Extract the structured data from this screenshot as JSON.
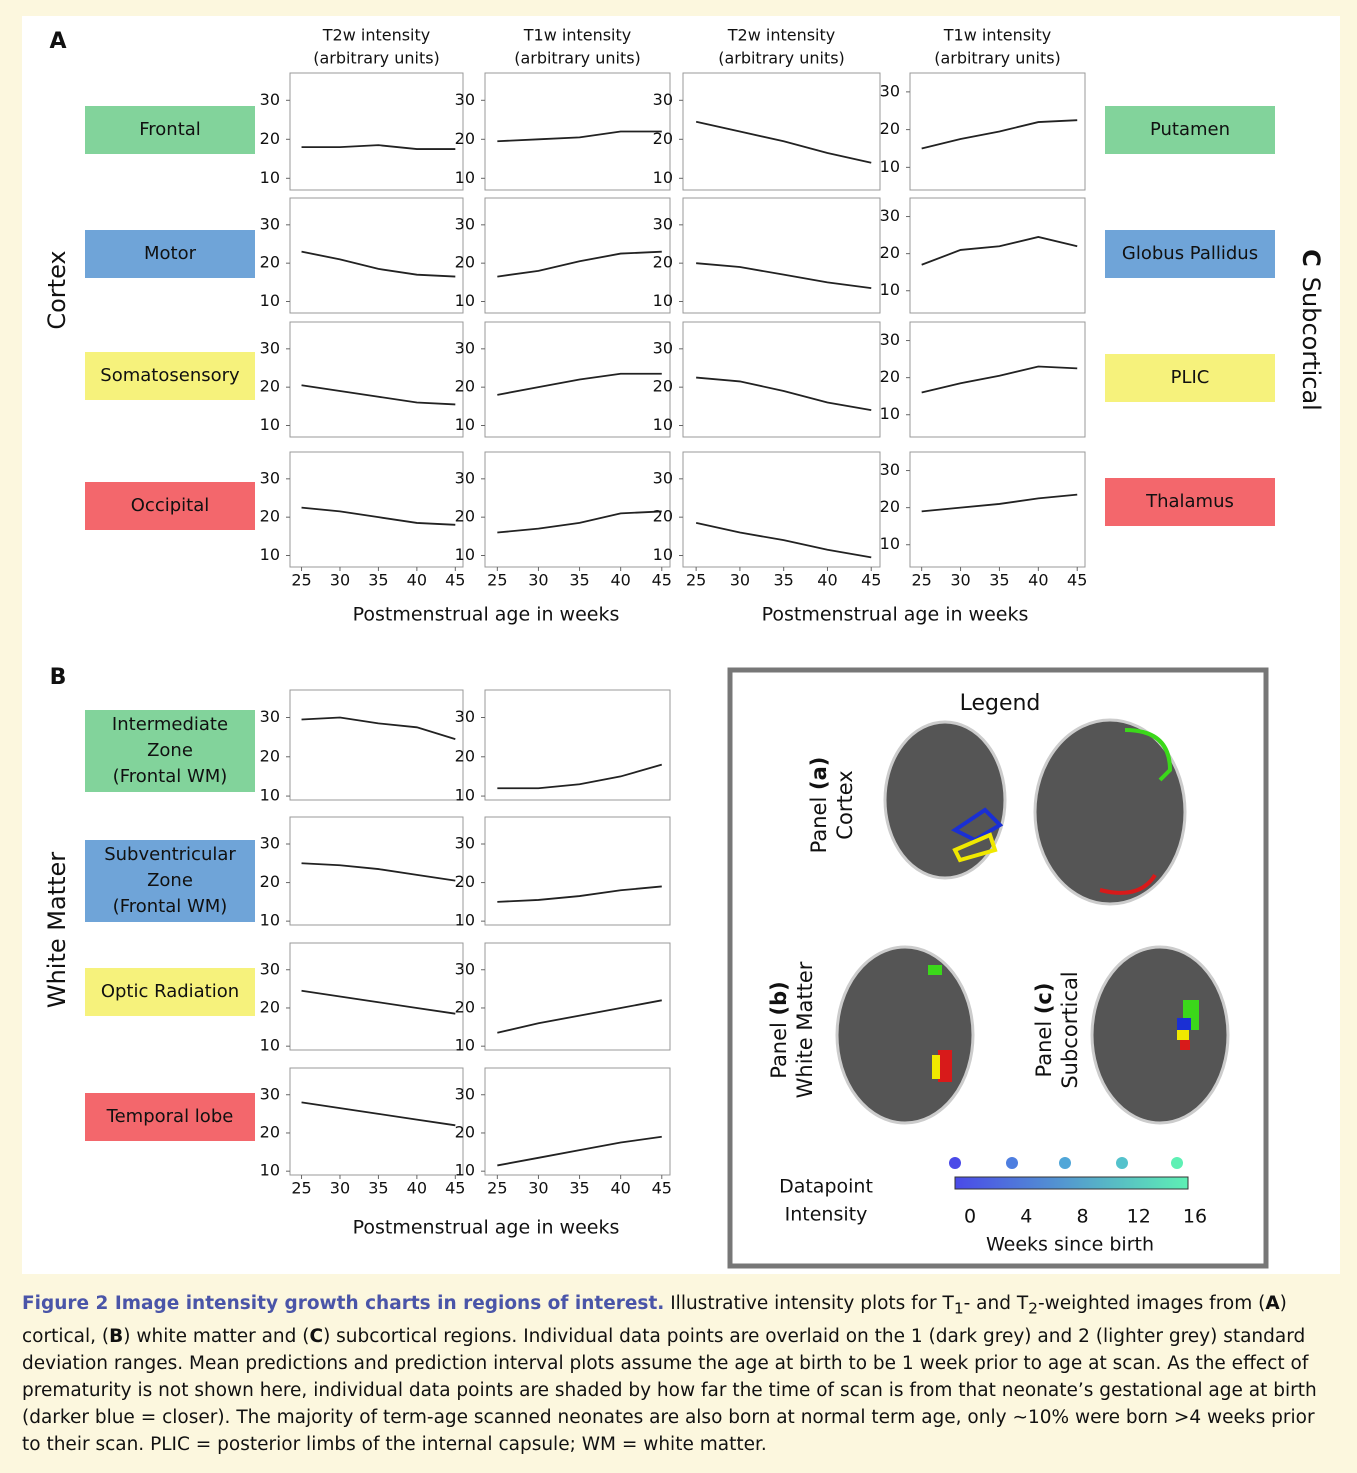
{
  "figure": {
    "panel_a": "A",
    "panel_b": "B",
    "headers": [
      [
        "T2w intensity",
        "(arbitrary units)"
      ],
      [
        "T1w intensity",
        "(arbitrary units)"
      ],
      [
        "T2w intensity",
        "(arbitrary units)"
      ],
      [
        "T1w intensity",
        "(arbitrary units)"
      ]
    ],
    "cortex_label": "Cortex",
    "subcortical_label": [
      "C",
      "Subcortical"
    ],
    "white_matter_label": "White Matter",
    "x_axis_label": "Postmenstrual age in weeks",
    "cortex_regions": [
      {
        "label": [
          "Frontal"
        ],
        "color": "#82d39b"
      },
      {
        "label": [
          "Motor"
        ],
        "color": "#6fa4d8"
      },
      {
        "label": [
          "Somatosensory"
        ],
        "color": "#f6f27c"
      },
      {
        "label": [
          "Occipital"
        ],
        "color": "#f3676c"
      }
    ],
    "subcortical_regions": [
      {
        "label": [
          "Putamen"
        ],
        "color": "#82d39b"
      },
      {
        "label": [
          "Globus Pallidus"
        ],
        "color": "#6fa4d8"
      },
      {
        "label": [
          "PLIC"
        ],
        "color": "#f6f27c"
      },
      {
        "label": [
          "Thalamus"
        ],
        "color": "#f3676c"
      }
    ],
    "wm_regions": [
      {
        "label": [
          "Intermediate",
          "Zone",
          "(Frontal WM)"
        ],
        "color": "#82d39b"
      },
      {
        "label": [
          "Subventricular",
          "Zone",
          "(Frontal WM)"
        ],
        "color": "#6fa4d8"
      },
      {
        "label": [
          "Optic Radiation"
        ],
        "color": "#f6f27c"
      },
      {
        "label": [
          "Temporal lobe"
        ],
        "color": "#f3676c"
      }
    ],
    "legend": {
      "title": "Legend",
      "panels": [
        [
          "Panel ",
          "(a)",
          "Cortex"
        ],
        [
          "Panel ",
          "(b)",
          "White Matter"
        ],
        [
          "Panel ",
          "(c)",
          "Subcortical"
        ]
      ],
      "colorbar_label": [
        "Datapoint",
        "Intensity"
      ],
      "colorbar_ticks": [
        0,
        4,
        8,
        12,
        16
      ],
      "colorbar_title": "Weeks since birth"
    },
    "caption": {
      "title": "Figure 2  Image intensity growth charts in regions of interest.",
      "parts": [
        "Illustrative intensity plots for T",
        "1",
        "- and T",
        "2",
        "-weighted images from (",
        "A",
        ") cortical, (",
        "B",
        ") white matter and (",
        "C",
        ") subcortical regions. Individual data points are overlaid on the 1 (dark grey) and 2 (lighter grey) standard deviation ranges. Mean predictions and prediction interval plots assume the age at birth to be 1 week prior to age at scan. As the effect of prematurity is not shown here, individual data points are shaded by how far the time of scan is from that neonate’s gestational age at birth (darker blue = closer). The majority of term-age scanned neonates are also born at normal term age, only ∼10% were born >4 weeks prior to their scan. PLIC = posterior limbs of the internal capsule; WM = white matter."
      ]
    }
  },
  "chart_data": [
    {
      "type": "line",
      "x": [
        25,
        30,
        35,
        40,
        45
      ],
      "values": [
        18,
        18,
        18.5,
        17.5,
        17.5
      ],
      "color": "#222",
      "xlim": [
        23.5,
        46
      ],
      "ylim": [
        7,
        37
      ],
      "yticks": [
        10,
        20,
        30
      ]
    },
    {
      "type": "line",
      "x": [
        25,
        30,
        35,
        40,
        45
      ],
      "values": [
        19.5,
        20,
        20.5,
        22,
        22
      ],
      "color": "#222",
      "xlim": [
        23.5,
        46
      ],
      "ylim": [
        7,
        37
      ],
      "yticks": [
        10,
        20,
        30
      ]
    },
    {
      "type": "line",
      "x": [
        25,
        30,
        35,
        40,
        45
      ],
      "values": [
        24.5,
        22,
        19.5,
        16.5,
        14
      ],
      "color": "#222",
      "xlim": [
        23.5,
        46
      ],
      "ylim": [
        7,
        37
      ],
      "yticks": [
        10,
        20,
        30
      ]
    },
    {
      "type": "line",
      "x": [
        25,
        30,
        35,
        40,
        45
      ],
      "values": [
        15,
        17.5,
        19.5,
        22,
        22.5
      ],
      "color": "#222",
      "xlim": [
        23.5,
        46
      ],
      "ylim": [
        4,
        35
      ],
      "yticks": [
        10,
        20,
        30
      ]
    },
    {
      "type": "line",
      "x": [
        25,
        30,
        35,
        40,
        45
      ],
      "values": [
        23,
        21,
        18.5,
        17,
        16.5
      ],
      "color": "#222",
      "xlim": [
        23.5,
        46
      ],
      "ylim": [
        7,
        37
      ],
      "yticks": [
        10,
        20,
        30
      ]
    },
    {
      "type": "line",
      "x": [
        25,
        30,
        35,
        40,
        45
      ],
      "values": [
        16.5,
        18,
        20.5,
        22.5,
        23
      ],
      "color": "#222",
      "xlim": [
        23.5,
        46
      ],
      "ylim": [
        7,
        37
      ],
      "yticks": [
        10,
        20,
        30
      ]
    },
    {
      "type": "line",
      "x": [
        25,
        30,
        35,
        40,
        45
      ],
      "values": [
        20,
        19,
        17,
        15,
        13.5
      ],
      "color": "#222",
      "xlim": [
        23.5,
        46
      ],
      "ylim": [
        7,
        37
      ],
      "yticks": [
        10,
        20,
        30
      ]
    },
    {
      "type": "line",
      "x": [
        25,
        30,
        35,
        40,
        45
      ],
      "values": [
        17,
        21,
        22,
        24.5,
        22
      ],
      "color": "#222",
      "xlim": [
        23.5,
        46
      ],
      "ylim": [
        4,
        35
      ],
      "yticks": [
        10,
        20,
        30
      ]
    },
    {
      "type": "line",
      "x": [
        25,
        30,
        35,
        40,
        45
      ],
      "values": [
        20.5,
        19,
        17.5,
        16,
        15.5
      ],
      "color": "#222",
      "xlim": [
        23.5,
        46
      ],
      "ylim": [
        7,
        37
      ],
      "yticks": [
        10,
        20,
        30
      ]
    },
    {
      "type": "line",
      "x": [
        25,
        30,
        35,
        40,
        45
      ],
      "values": [
        18,
        20,
        22,
        23.5,
        23.5
      ],
      "color": "#222",
      "xlim": [
        23.5,
        46
      ],
      "ylim": [
        7,
        37
      ],
      "yticks": [
        10,
        20,
        30
      ]
    },
    {
      "type": "line",
      "x": [
        25,
        30,
        35,
        40,
        45
      ],
      "values": [
        22.5,
        21.5,
        19,
        16,
        14
      ],
      "color": "#222",
      "xlim": [
        23.5,
        46
      ],
      "ylim": [
        7,
        37
      ],
      "yticks": [
        10,
        20,
        30
      ]
    },
    {
      "type": "line",
      "x": [
        25,
        30,
        35,
        40,
        45
      ],
      "values": [
        16,
        18.5,
        20.5,
        23,
        22.5
      ],
      "color": "#222",
      "xlim": [
        23.5,
        46
      ],
      "ylim": [
        4,
        35
      ],
      "yticks": [
        10,
        20,
        30
      ]
    },
    {
      "type": "line",
      "x": [
        25,
        30,
        35,
        40,
        45
      ],
      "values": [
        22.5,
        21.5,
        20,
        18.5,
        18
      ],
      "color": "#222",
      "xlim": [
        23.5,
        46
      ],
      "ylim": [
        7,
        37
      ],
      "yticks": [
        10,
        20,
        30
      ],
      "xticks": [
        25,
        30,
        35,
        40,
        45
      ]
    },
    {
      "type": "line",
      "x": [
        25,
        30,
        35,
        40,
        45
      ],
      "values": [
        16,
        17,
        18.5,
        21,
        21.5
      ],
      "color": "#222",
      "xlim": [
        23.5,
        46
      ],
      "ylim": [
        7,
        37
      ],
      "yticks": [
        10,
        20,
        30
      ],
      "xticks": [
        25,
        30,
        35,
        40,
        45
      ]
    },
    {
      "type": "line",
      "x": [
        25,
        30,
        35,
        40,
        45
      ],
      "values": [
        18.5,
        16,
        14,
        11.5,
        9.5
      ],
      "color": "#222",
      "xlim": [
        23.5,
        46
      ],
      "ylim": [
        7,
        37
      ],
      "yticks": [
        10,
        20,
        30
      ],
      "xticks": [
        25,
        30,
        35,
        40,
        45
      ]
    },
    {
      "type": "line",
      "x": [
        25,
        30,
        35,
        40,
        45
      ],
      "values": [
        19,
        20,
        21,
        22.5,
        23.5
      ],
      "color": "#222",
      "xlim": [
        23.5,
        46
      ],
      "ylim": [
        4,
        35
      ],
      "yticks": [
        10,
        20,
        30
      ],
      "xticks": [
        25,
        30,
        35,
        40,
        45
      ]
    },
    {
      "type": "line",
      "x": [
        25,
        30,
        35,
        40,
        45
      ],
      "values": [
        29.5,
        30,
        28.5,
        27.5,
        24.5
      ],
      "color": "#222",
      "xlim": [
        23.5,
        46
      ],
      "ylim": [
        9,
        37
      ],
      "yticks": [
        10,
        20,
        30
      ]
    },
    {
      "type": "line",
      "x": [
        25,
        30,
        35,
        40,
        45
      ],
      "values": [
        12,
        12,
        13,
        15,
        18
      ],
      "color": "#222",
      "xlim": [
        23.5,
        46
      ],
      "ylim": [
        9,
        37
      ],
      "yticks": [
        10,
        20,
        30
      ]
    },
    {
      "type": "line",
      "x": [
        25,
        30,
        35,
        40,
        45
      ],
      "values": [
        25,
        24.5,
        23.5,
        22,
        20.5
      ],
      "color": "#222",
      "xlim": [
        23.5,
        46
      ],
      "ylim": [
        9,
        37
      ],
      "yticks": [
        10,
        20,
        30
      ]
    },
    {
      "type": "line",
      "x": [
        25,
        30,
        35,
        40,
        45
      ],
      "values": [
        15,
        15.5,
        16.5,
        18,
        19
      ],
      "color": "#222",
      "xlim": [
        23.5,
        46
      ],
      "ylim": [
        9,
        37
      ],
      "yticks": [
        10,
        20,
        30
      ]
    },
    {
      "type": "line",
      "x": [
        25,
        30,
        35,
        40,
        45
      ],
      "values": [
        24.5,
        23,
        21.5,
        20,
        18.5
      ],
      "color": "#222",
      "xlim": [
        23.5,
        46
      ],
      "ylim": [
        9,
        37
      ],
      "yticks": [
        10,
        20,
        30
      ]
    },
    {
      "type": "line",
      "x": [
        25,
        30,
        35,
        40,
        45
      ],
      "values": [
        13.5,
        16,
        18,
        20,
        22
      ],
      "color": "#222",
      "xlim": [
        23.5,
        46
      ],
      "ylim": [
        9,
        37
      ],
      "yticks": [
        10,
        20,
        30
      ]
    },
    {
      "type": "line",
      "x": [
        25,
        30,
        35,
        40,
        45
      ],
      "values": [
        28,
        26.5,
        25,
        23.5,
        22
      ],
      "color": "#222",
      "xlim": [
        23.5,
        46
      ],
      "ylim": [
        9,
        37
      ],
      "yticks": [
        10,
        20,
        30
      ],
      "xticks": [
        25,
        30,
        35,
        40,
        45
      ]
    },
    {
      "type": "line",
      "x": [
        25,
        30,
        35,
        40,
        45
      ],
      "values": [
        11.5,
        13.5,
        15.5,
        17.5,
        19
      ],
      "color": "#222",
      "xlim": [
        23.5,
        46
      ],
      "ylim": [
        9,
        37
      ],
      "yticks": [
        10,
        20,
        30
      ],
      "xticks": [
        25,
        30,
        35,
        40,
        45
      ]
    }
  ]
}
